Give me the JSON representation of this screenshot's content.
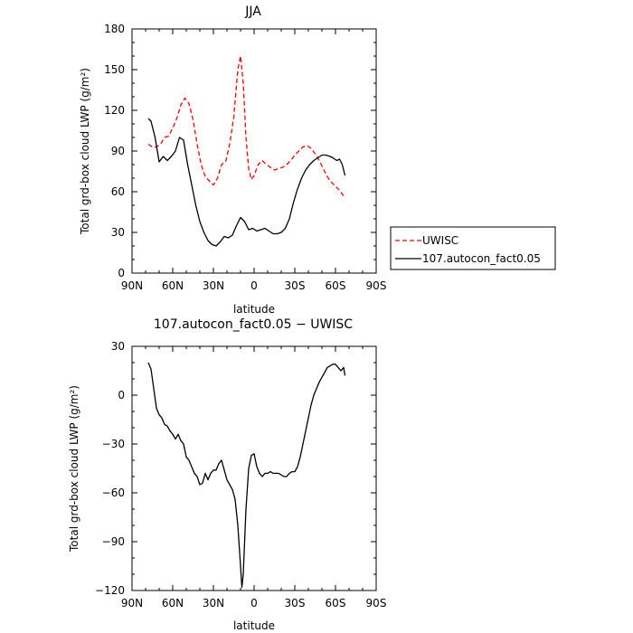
{
  "chart_data": [
    {
      "type": "line",
      "title": "JJA",
      "xlabel": "latitude",
      "ylabel": "Total grd-box cloud LWP (g/m²)",
      "xlim": [
        90,
        -90
      ],
      "ylim": [
        0,
        180
      ],
      "xticks": [
        90,
        60,
        30,
        0,
        -30,
        -60,
        -90
      ],
      "xtick_labels": [
        "90N",
        "60N",
        "30N",
        "0",
        "30S",
        "60S",
        "90S"
      ],
      "yticks": [
        0,
        30,
        60,
        90,
        120,
        150,
        180
      ],
      "ytick_labels": [
        "0",
        "30",
        "60",
        "90",
        "120",
        "150",
        "180"
      ],
      "legend_position": "right-outside",
      "series": [
        {
          "name": "UWISC",
          "color": "#ff0000",
          "dash": "dashed",
          "x": [
            78,
            75,
            72,
            69,
            66,
            63,
            60,
            57,
            54,
            51,
            48,
            45,
            42,
            39,
            36,
            33,
            30,
            27,
            24,
            21,
            18,
            15,
            12,
            10,
            8,
            6,
            4,
            2,
            0,
            -3,
            -6,
            -9,
            -12,
            -15,
            -18,
            -21,
            -24,
            -27,
            -30,
            -33,
            -36,
            -39,
            -42,
            -45,
            -48,
            -51,
            -54,
            -57,
            -60,
            -63,
            -66
          ],
          "values": [
            95,
            93,
            93,
            95,
            100,
            101,
            107,
            114,
            124,
            129,
            125,
            113,
            95,
            80,
            71,
            68,
            65,
            70,
            80,
            82,
            95,
            115,
            150,
            160,
            140,
            100,
            77,
            69,
            72,
            80,
            83,
            80,
            78,
            76,
            77,
            78,
            80,
            83,
            87,
            90,
            93,
            94,
            92,
            88,
            83,
            77,
            71,
            67,
            64,
            61,
            57
          ]
        },
        {
          "name": "107.autocon_fact0.05",
          "color": "#000000",
          "dash": "solid",
          "x": [
            78,
            76,
            73,
            70,
            67,
            64,
            61,
            58,
            55,
            52,
            49,
            46,
            43,
            40,
            37,
            34,
            31,
            28,
            25,
            22,
            19,
            16,
            13,
            10,
            7,
            4,
            1,
            -2,
            -5,
            -8,
            -11,
            -14,
            -17,
            -20,
            -23,
            -26,
            -29,
            -32,
            -35,
            -38,
            -41,
            -44,
            -47,
            -50,
            -53,
            -56,
            -58,
            -61,
            -63,
            -65,
            -67
          ],
          "values": [
            114,
            112,
            100,
            82,
            86,
            83,
            86,
            90,
            100,
            98,
            80,
            65,
            50,
            38,
            30,
            24,
            21,
            20,
            23,
            27,
            26,
            28,
            35,
            41,
            38,
            32,
            33,
            31,
            32,
            33,
            31,
            29,
            29,
            30,
            33,
            40,
            52,
            62,
            70,
            76,
            80,
            83,
            85,
            87,
            87,
            86,
            85,
            83,
            84,
            80,
            72
          ]
        }
      ]
    },
    {
      "type": "line",
      "title": "107.autocon_fact0.05 − UWISC",
      "xlabel": "latitude",
      "ylabel": "Total grd-box cloud LWP (g/m²)",
      "xlim": [
        90,
        -90
      ],
      "ylim": [
        -120,
        30
      ],
      "xticks": [
        90,
        60,
        30,
        0,
        -30,
        -60,
        -90
      ],
      "xtick_labels": [
        "90N",
        "60N",
        "30N",
        "0",
        "30S",
        "60S",
        "90S"
      ],
      "yticks": [
        -120,
        -90,
        -60,
        -30,
        0,
        30
      ],
      "ytick_labels": [
        "−120",
        "−90",
        "−60",
        "−30",
        "0",
        "30"
      ],
      "series": [
        {
          "color": "#000000",
          "dash": "solid",
          "x": [
            78,
            76,
            74,
            72,
            70,
            68,
            66,
            64,
            62,
            60,
            58,
            56,
            54,
            52,
            50,
            48,
            46,
            44,
            42,
            40,
            38,
            36,
            34,
            32,
            30,
            28,
            26,
            24,
            22,
            20,
            18,
            16,
            14,
            12,
            10,
            9,
            8,
            6,
            4,
            2,
            0,
            -2,
            -4,
            -6,
            -8,
            -10,
            -12,
            -14,
            -16,
            -18,
            -20,
            -22,
            -24,
            -26,
            -28,
            -30,
            -32,
            -34,
            -36,
            -38,
            -40,
            -42,
            -44,
            -46,
            -48,
            -50,
            -52,
            -54,
            -56,
            -58,
            -60,
            -62,
            -64,
            -66,
            -67
          ],
          "values": [
            20,
            16,
            4,
            -8,
            -12,
            -14,
            -18,
            -19,
            -22,
            -24,
            -27,
            -24,
            -28,
            -30,
            -38,
            -40,
            -44,
            -48,
            -50,
            -55,
            -54,
            -48,
            -52,
            -48,
            -46,
            -46,
            -42,
            -40,
            -46,
            -52,
            -55,
            -58,
            -64,
            -80,
            -105,
            -118,
            -110,
            -70,
            -45,
            -37,
            -36,
            -44,
            -48,
            -50,
            -48,
            -48,
            -47,
            -48,
            -48,
            -48,
            -49,
            -50,
            -50,
            -48,
            -47,
            -47,
            -44,
            -38,
            -30,
            -22,
            -14,
            -6,
            0,
            4,
            8,
            11,
            14,
            17,
            18,
            19,
            19,
            17,
            15,
            17,
            12
          ]
        }
      ]
    }
  ]
}
